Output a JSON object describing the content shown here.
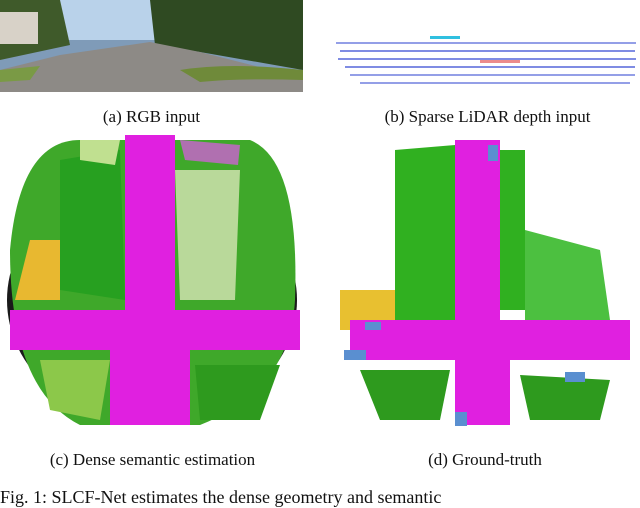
{
  "panels": [
    {
      "caption": "(a) RGB input"
    },
    {
      "caption": "(b) Sparse LiDAR depth input"
    },
    {
      "caption": "(c) Dense semantic estimation"
    },
    {
      "caption": "(d) Ground-truth"
    }
  ],
  "figure_caption": "Fig. 1: SLCF-Net estimates the dense geometry and semantic"
}
